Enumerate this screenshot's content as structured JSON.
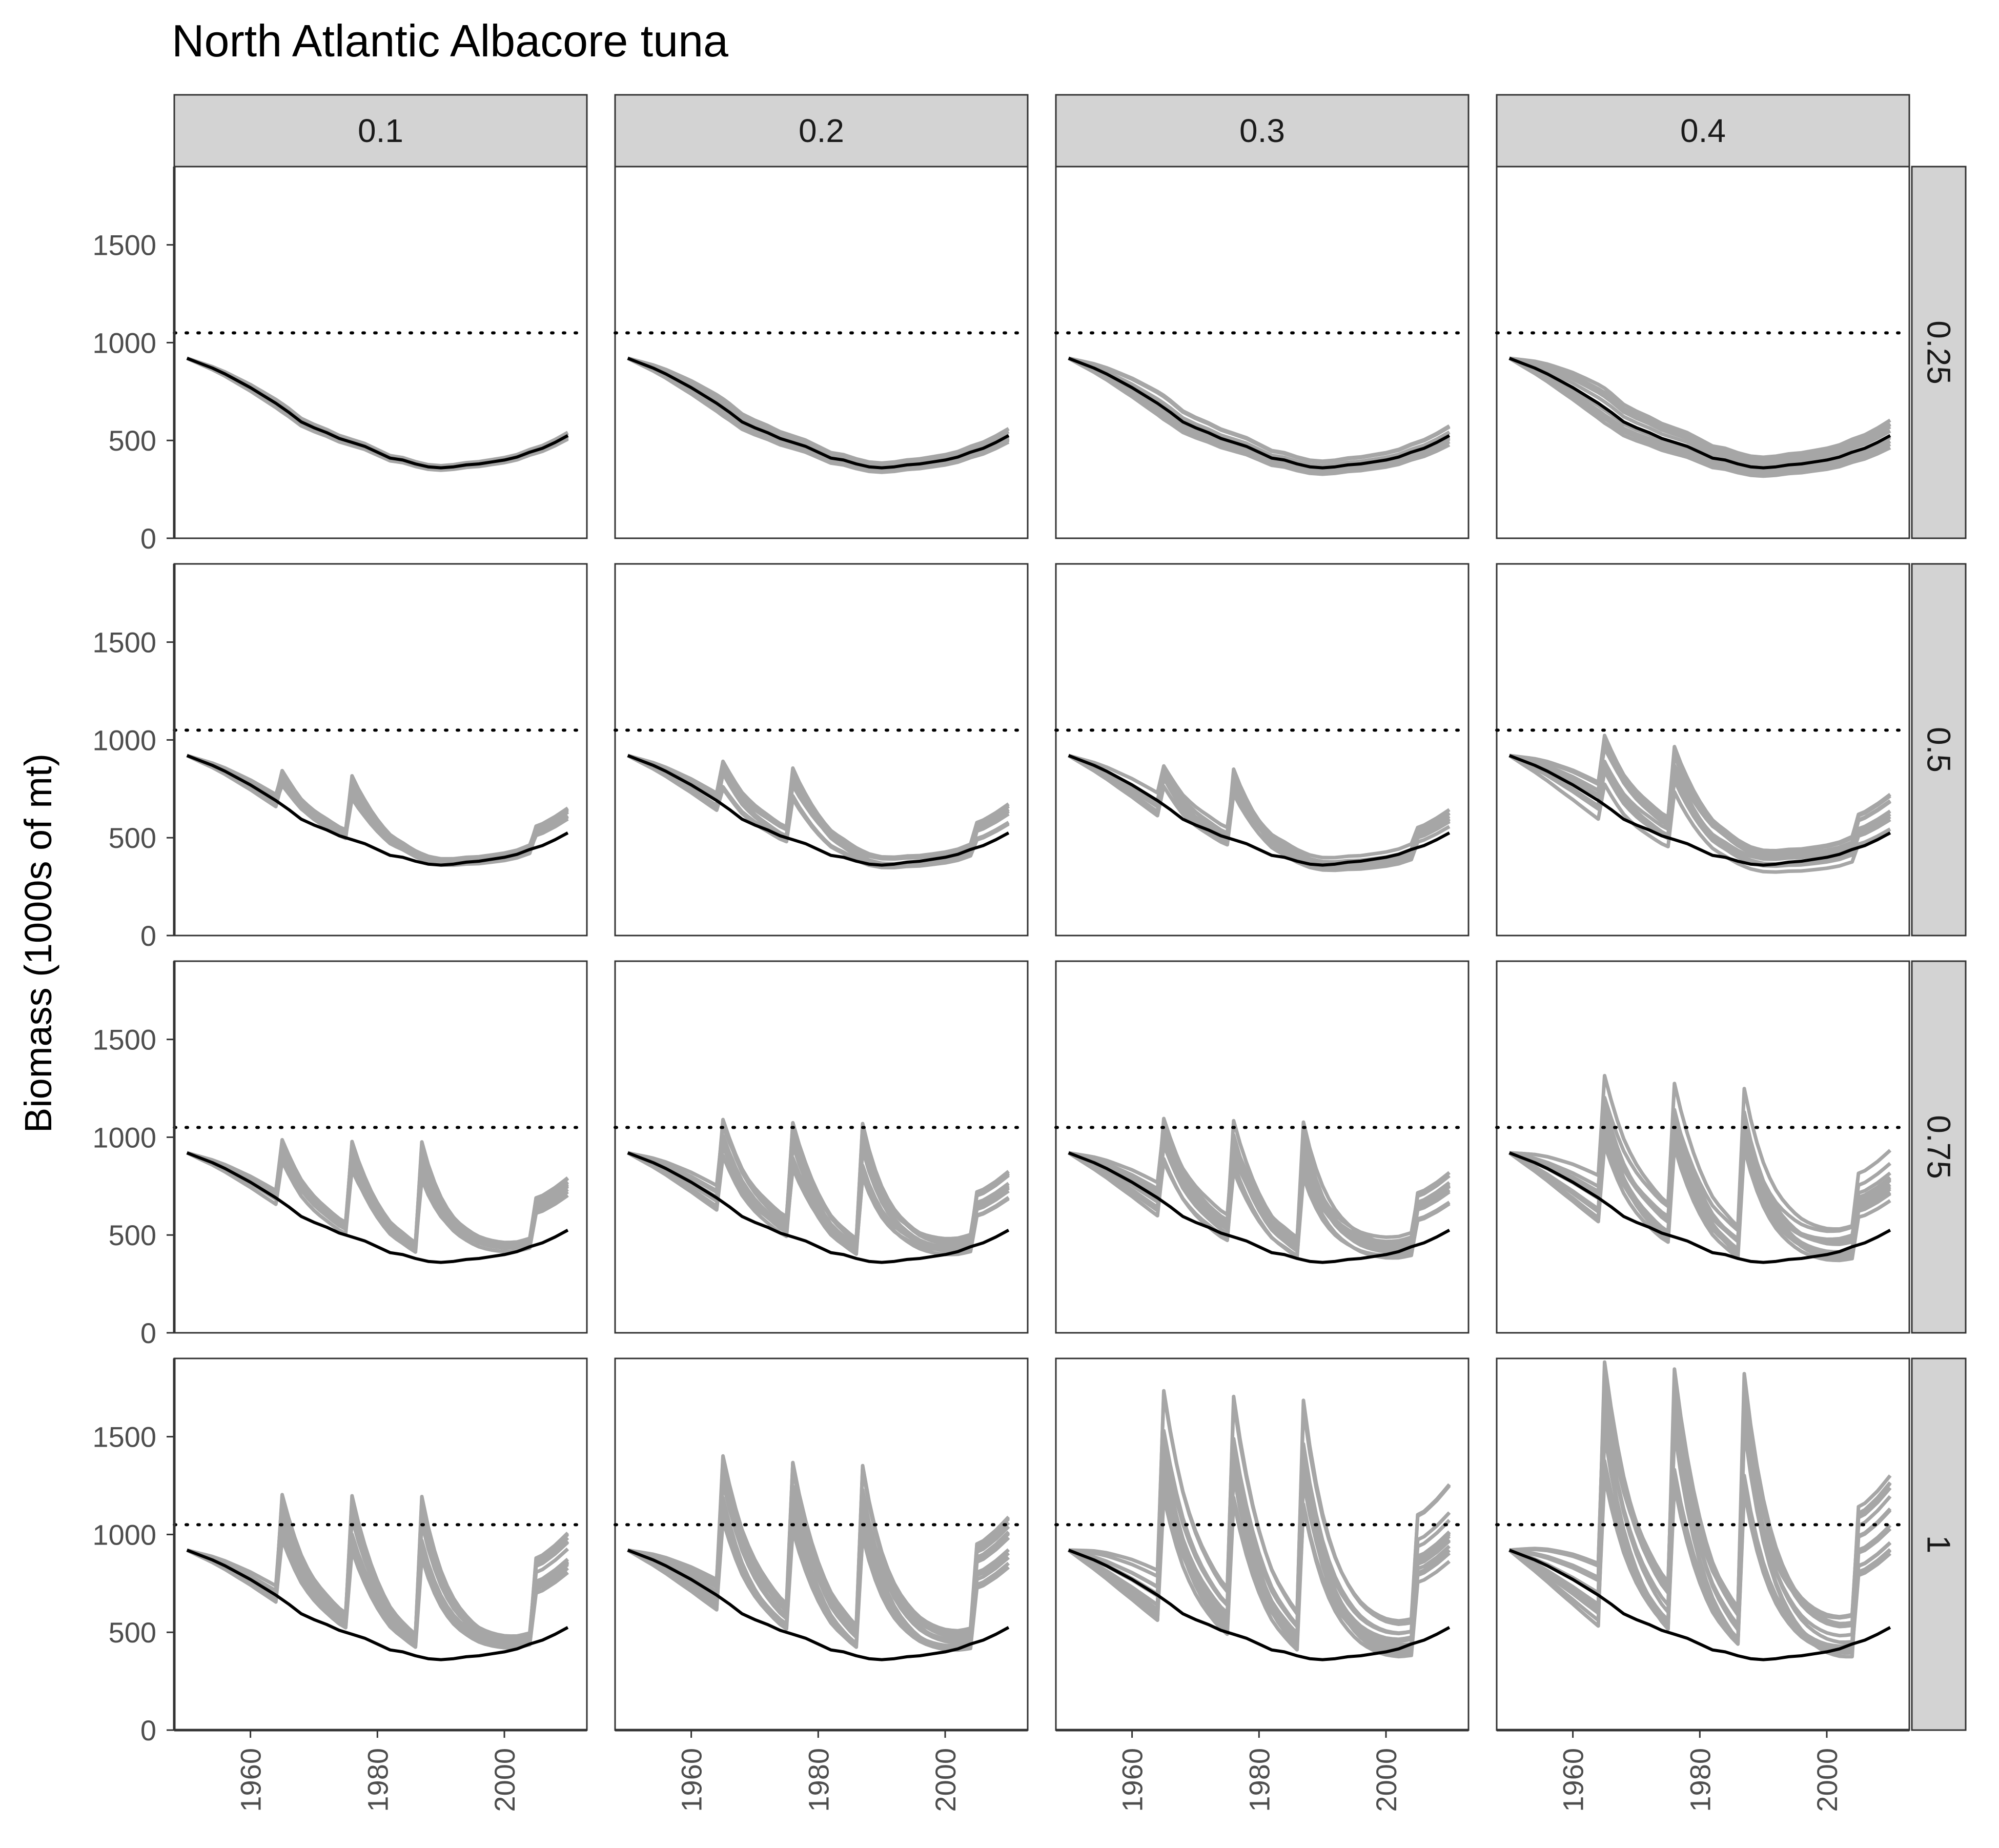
{
  "chart_data": {
    "type": "line",
    "title": "North Atlantic Albacore tuna",
    "ylabel": "Biomass (1000s of mt)",
    "xlabel": "",
    "xlim": [
      1948,
      2013
    ],
    "ylim": [
      0,
      1900
    ],
    "x_ticks": [
      1960,
      1980,
      2000
    ],
    "y_ticks": [
      0,
      500,
      1000,
      1500
    ],
    "facet_columns": [
      "0.1",
      "0.2",
      "0.3",
      "0.4"
    ],
    "facet_rows": [
      "0.25",
      "0.5",
      "0.75",
      "1"
    ],
    "reference_line": {
      "y": 1050,
      "style": "dotted",
      "color": "#000000"
    },
    "colors": {
      "baseline": "#000000",
      "simulations": "#a6a6a6",
      "strip": "#d3d3d3"
    },
    "baseline_x": [
      1950,
      1952,
      1954,
      1956,
      1958,
      1960,
      1962,
      1964,
      1966,
      1968,
      1970,
      1972,
      1974,
      1976,
      1978,
      1980,
      1982,
      1984,
      1986,
      1988,
      1990,
      1992,
      1994,
      1996,
      1998,
      2000,
      2002,
      2004,
      2006,
      2008,
      2010
    ],
    "baseline_y": [
      920,
      895,
      870,
      840,
      805,
      770,
      730,
      690,
      645,
      595,
      565,
      540,
      510,
      490,
      470,
      440,
      410,
      400,
      380,
      365,
      360,
      365,
      375,
      380,
      390,
      400,
      415,
      440,
      460,
      490,
      525
    ],
    "simulation_bands": {
      "rows": [
        {
          "spikes": [],
          "end_jump": 0.0,
          "spread_by_column": [
            0.04,
            0.07,
            0.11,
            0.16
          ],
          "n_lines": 10
        },
        {
          "spikes": [
            1965,
            1976
          ],
          "end_jump": 0.35,
          "spread_by_column": [
            0.05,
            0.08,
            0.12,
            0.17
          ],
          "n_lines": 10
        },
        {
          "spikes": [
            1965,
            1976,
            1987
          ],
          "end_jump": 0.6,
          "spread_by_column": [
            0.06,
            0.1,
            0.15,
            0.2
          ],
          "n_lines": 12
        },
        {
          "spikes": [
            1965,
            1976,
            1987
          ],
          "end_jump": 0.9,
          "spread_by_column": [
            0.08,
            0.13,
            0.2,
            0.28
          ],
          "n_lines": 14
        }
      ],
      "spike_peak_by_cell": [
        [
          0,
          0,
          0,
          0
        ],
        [
          850,
          880,
          930,
          990
        ],
        [
          980,
          1080,
          1100,
          1220
        ],
        [
          1200,
          1400,
          1650,
          1860
        ]
      ]
    }
  }
}
